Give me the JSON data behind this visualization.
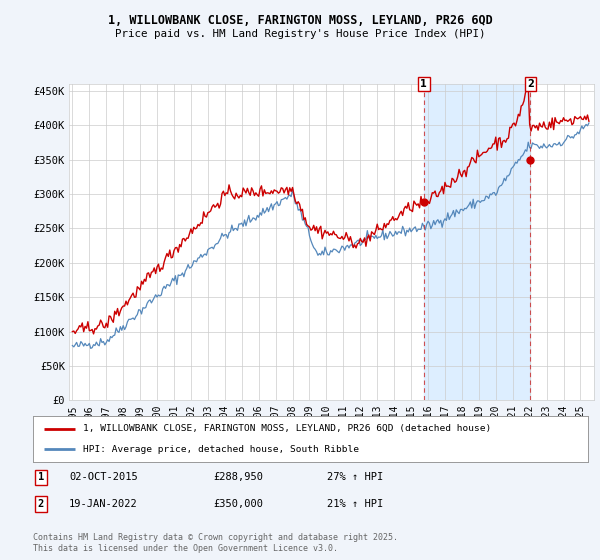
{
  "title_line1": "1, WILLOWBANK CLOSE, FARINGTON MOSS, LEYLAND, PR26 6QD",
  "title_line2": "Price paid vs. HM Land Registry's House Price Index (HPI)",
  "ylabel_ticks": [
    "£0",
    "£50K",
    "£100K",
    "£150K",
    "£200K",
    "£250K",
    "£300K",
    "£350K",
    "£400K",
    "£450K"
  ],
  "ytick_values": [
    0,
    50000,
    100000,
    150000,
    200000,
    250000,
    300000,
    350000,
    400000,
    450000
  ],
  "ylim": [
    0,
    460000
  ],
  "xlim_start": 1994.8,
  "xlim_end": 2025.8,
  "red_line_color": "#cc0000",
  "blue_line_color": "#5588bb",
  "shade_color": "#ddeeff",
  "marker1_x": 2015.75,
  "marker1_y": 288950,
  "marker1_label": "1",
  "marker2_x": 2022.05,
  "marker2_y": 350000,
  "marker2_label": "2",
  "vline1_x": 2015.75,
  "vline2_x": 2022.05,
  "legend_red": "1, WILLOWBANK CLOSE, FARINGTON MOSS, LEYLAND, PR26 6QD (detached house)",
  "legend_blue": "HPI: Average price, detached house, South Ribble",
  "table_row1": [
    "1",
    "02-OCT-2015",
    "£288,950",
    "27% ↑ HPI"
  ],
  "table_row2": [
    "2",
    "19-JAN-2022",
    "£350,000",
    "21% ↑ HPI"
  ],
  "copyright": "Contains HM Land Registry data © Crown copyright and database right 2025.\nThis data is licensed under the Open Government Licence v3.0.",
  "background_color": "#f0f4fa",
  "plot_bg_color": "#ffffff",
  "grid_color": "#cccccc"
}
